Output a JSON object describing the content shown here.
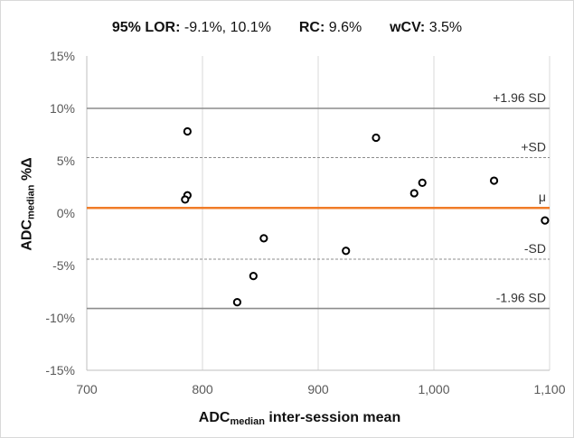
{
  "stats": {
    "lor_label": "95% LOR:",
    "lor_value": "-9.1%, 10.1%",
    "rc_label": "RC:",
    "rc_value": "9.6%",
    "wcv_label": "wCV:",
    "wcv_value": "3.5%"
  },
  "chart_data": {
    "type": "scatter",
    "title": "",
    "xlabel_main": "ADC",
    "xlabel_sub": "median",
    "xlabel_rest": " inter-session mean",
    "ylabel_main": "ADC",
    "ylabel_sub": "median",
    "ylabel_rest": " %Δ",
    "xlim": [
      700,
      1100
    ],
    "ylim": [
      -15,
      15
    ],
    "x_ticks": [
      700,
      800,
      900,
      1000,
      1100
    ],
    "x_tick_labels": [
      "700",
      "800",
      "900",
      "1,000",
      "1,100"
    ],
    "y_ticks": [
      15,
      10,
      5,
      0,
      -5,
      -10,
      -15
    ],
    "y_tick_labels": [
      "15%",
      "10%",
      "5%",
      "0%",
      "-5%",
      "-10%",
      "-15%"
    ],
    "grid": "vertical",
    "points": [
      {
        "x": 787,
        "y": 7.8
      },
      {
        "x": 787,
        "y": 1.7
      },
      {
        "x": 785,
        "y": 1.3
      },
      {
        "x": 853,
        "y": -2.4
      },
      {
        "x": 844,
        "y": -6.0
      },
      {
        "x": 830,
        "y": -8.5
      },
      {
        "x": 924,
        "y": -3.6
      },
      {
        "x": 950,
        "y": 7.2
      },
      {
        "x": 983,
        "y": 1.9
      },
      {
        "x": 990,
        "y": 2.9
      },
      {
        "x": 1052,
        "y": 3.1
      },
      {
        "x": 1096,
        "y": -0.7
      }
    ],
    "reference_lines": [
      {
        "label": "+1.96 SD",
        "y": 10.0,
        "style": "solid",
        "color": "#8c8c8c"
      },
      {
        "label": "+SD",
        "y": 5.3,
        "style": "dashed",
        "color": "#8c8c8c"
      },
      {
        "label": "μ",
        "y": 0.5,
        "style": "solid",
        "color": "#f07c28"
      },
      {
        "label": "-SD",
        "y": -4.4,
        "style": "dashed",
        "color": "#8c8c8c"
      },
      {
        "label": "-1.96 SD",
        "y": -9.1,
        "style": "solid",
        "color": "#8c8c8c"
      }
    ]
  }
}
